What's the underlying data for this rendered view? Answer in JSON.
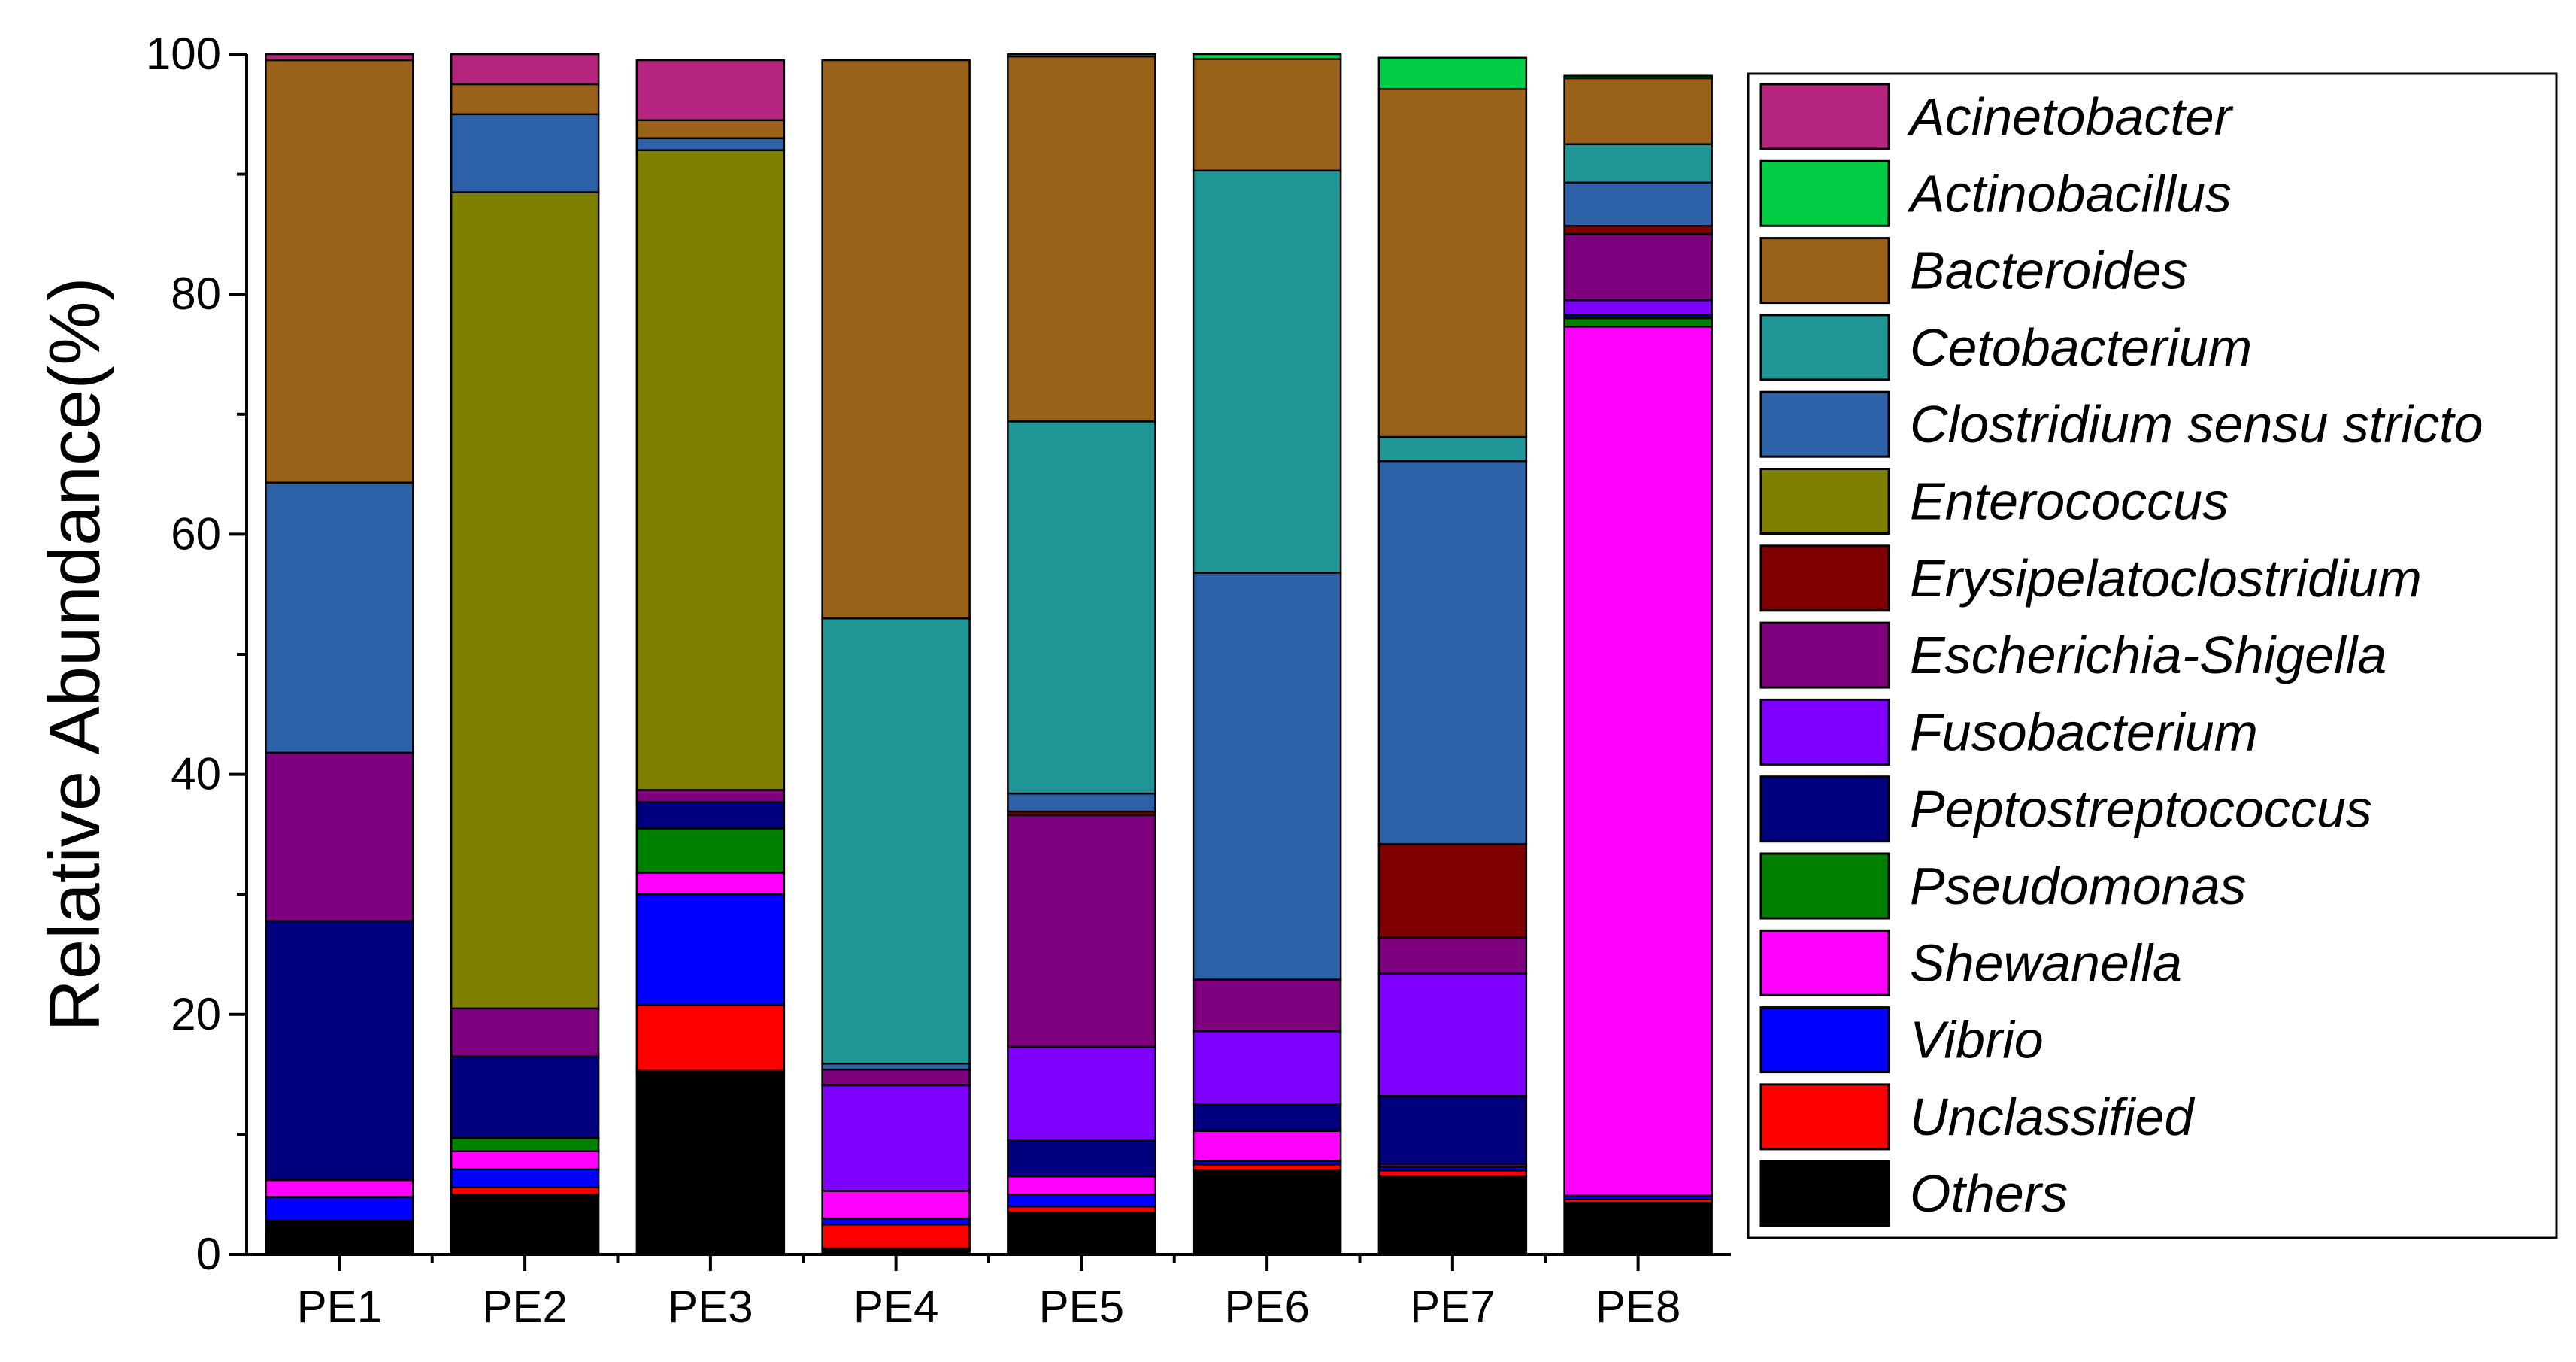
{
  "chart_data": {
    "type": "bar",
    "stacked": true,
    "title": "",
    "xlabel": "",
    "ylabel": "Relative Abundance(%)",
    "ylim": [
      0,
      100
    ],
    "yticks": [
      0,
      20,
      40,
      60,
      80,
      100
    ],
    "grid": false,
    "legend_position": "right",
    "categories": [
      "PE1",
      "PE2",
      "PE3",
      "PE4",
      "PE5",
      "PE6",
      "PE7",
      "PE8"
    ],
    "series": [
      {
        "name": "Others",
        "color": "#000000",
        "values": [
          2.8,
          5.0,
          15.3,
          0.5,
          3.5,
          7.0,
          6.5,
          4.3
        ]
      },
      {
        "name": "Unclassified",
        "color": "#FF0000",
        "values": [
          0.0,
          0.6,
          5.5,
          2.0,
          0.5,
          0.5,
          0.5,
          0.3
        ]
      },
      {
        "name": "Vibrio",
        "color": "#0000FF",
        "values": [
          2.0,
          1.5,
          9.2,
          0.5,
          1.0,
          0.3,
          0.3,
          0.3
        ]
      },
      {
        "name": "Shewanella",
        "color": "#FF00FF",
        "values": [
          1.4,
          1.5,
          1.8,
          2.3,
          1.5,
          2.5,
          0.2,
          72.4
        ]
      },
      {
        "name": "Pseudomonas",
        "color": "#008000",
        "values": [
          0.0,
          1.1,
          3.7,
          0.0,
          0.0,
          0.0,
          0.0,
          0.7
        ]
      },
      {
        "name": "Peptostreptococcus",
        "color": "#00007F",
        "values": [
          21.6,
          6.8,
          2.2,
          0.0,
          3.0,
          2.2,
          5.7,
          0.3
        ]
      },
      {
        "name": "Fusobacterium",
        "color": "#7F00FF",
        "values": [
          0.0,
          0.0,
          0.0,
          8.8,
          7.8,
          6.1,
          10.2,
          1.2
        ]
      },
      {
        "name": "Escherichia-Shigella",
        "color": "#7F007F",
        "values": [
          14.0,
          4.0,
          1.0,
          1.3,
          19.3,
          4.3,
          3.0,
          5.5
        ]
      },
      {
        "name": "Erysipelatoclostridium",
        "color": "#7F0000",
        "values": [
          0.0,
          0.0,
          0.0,
          0.0,
          0.3,
          0.0,
          7.8,
          0.7
        ]
      },
      {
        "name": "Enterococcus",
        "color": "#808000",
        "values": [
          0.0,
          68.0,
          53.3,
          0.0,
          0.0,
          0.0,
          0.0,
          0.0
        ]
      },
      {
        "name": "Clostridium sensu stricto",
        "color": "#2E62A8",
        "values": [
          22.5,
          6.5,
          1.0,
          0.5,
          1.5,
          33.9,
          31.9,
          3.6
        ]
      },
      {
        "name": "Cetobacterium",
        "color": "#1F9595",
        "values": [
          0.0,
          0.0,
          0.0,
          37.1,
          31.0,
          33.5,
          2.0,
          3.2
        ]
      },
      {
        "name": "Bacteroides",
        "color": "#9A6118",
        "values": [
          35.2,
          2.5,
          1.5,
          46.5,
          30.4,
          9.3,
          29.0,
          5.5
        ]
      },
      {
        "name": "Actinobacillus",
        "color": "#00CC44",
        "values": [
          0.0,
          0.0,
          0.0,
          0.0,
          0.0,
          0.4,
          2.6,
          0.2
        ]
      },
      {
        "name": "Acinetobacter",
        "color": "#B5247F",
        "values": [
          0.5,
          2.5,
          5.0,
          0.0,
          0.2,
          0.0,
          0.0,
          0.0
        ]
      }
    ],
    "legend_order": [
      "Acinetobacter",
      "Actinobacillus",
      "Bacteroides",
      "Cetobacterium",
      "Clostridium sensu stricto",
      "Enterococcus",
      "Erysipelatoclostridium",
      "Escherichia-Shigella",
      "Fusobacterium",
      "Peptostreptococcus",
      "Pseudomonas",
      "Shewanella",
      "Vibrio",
      "Unclassified",
      "Others"
    ]
  }
}
